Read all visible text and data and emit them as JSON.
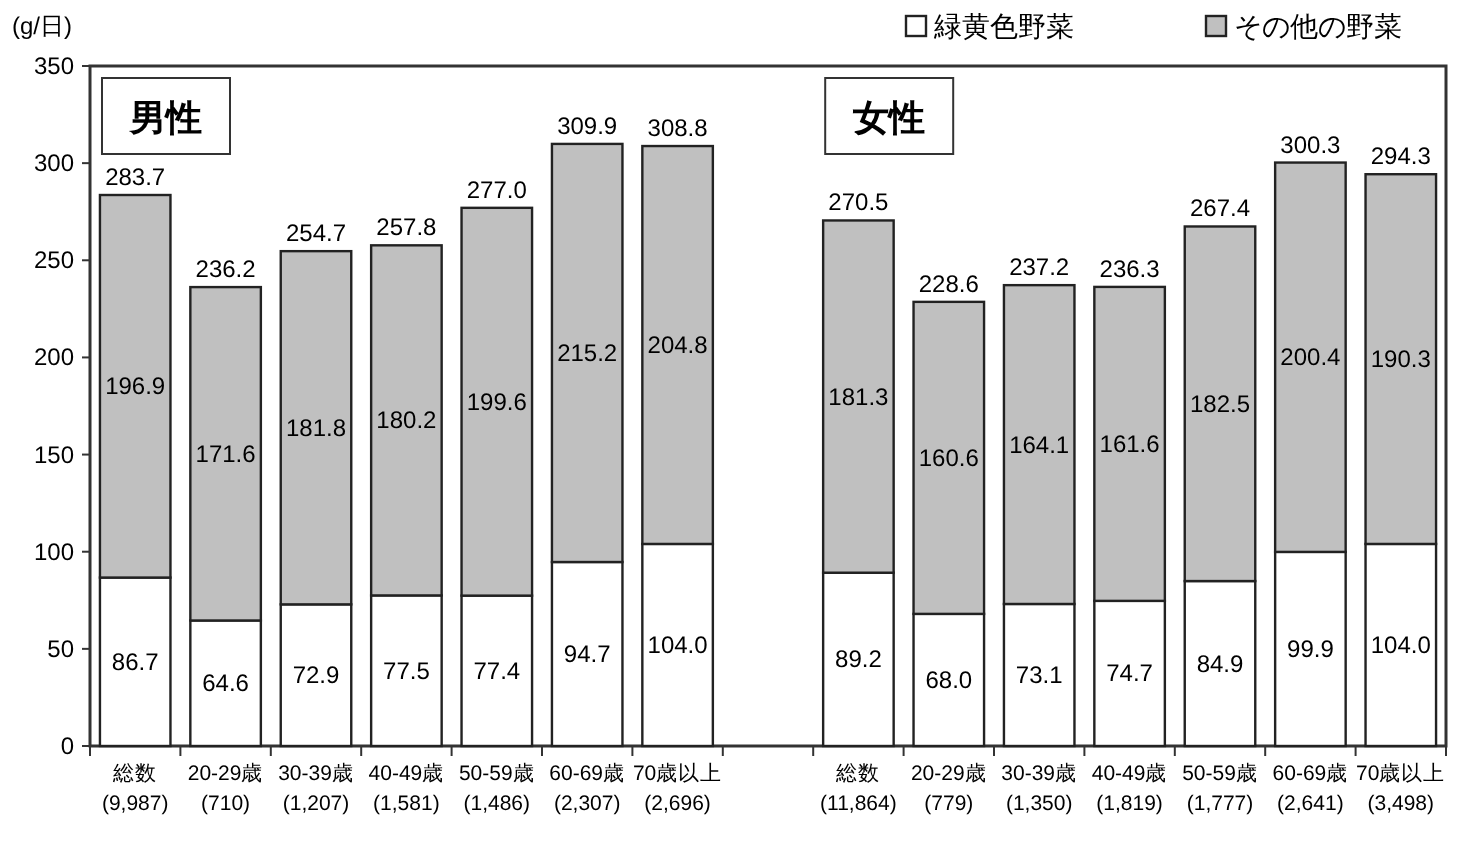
{
  "chart_data": {
    "type": "bar",
    "stacked": true,
    "ylabel": "(g/日)",
    "ylim": [
      0,
      350
    ],
    "yticks": [
      0,
      50,
      100,
      150,
      200,
      250,
      300,
      350
    ],
    "legend": "top right",
    "grid": false,
    "categories": [
      "総数\n(9,987)",
      "20-29歳\n(710)",
      "30-39歳\n(1,207)",
      "40-49歳\n(1,581)",
      "50-59歳\n(1,486)",
      "60-69歳\n(2,307)",
      "70歳以上\n(2,696)",
      null,
      "総数\n(11,864)",
      "20-29歳\n(779)",
      "30-39歳\n(1,350)",
      "40-49歳\n(1,819)",
      "50-59歳\n(1,777)",
      "60-69歳\n(2,641)",
      "70歳以上\n(3,498)"
    ],
    "series": [
      {
        "name": "緑黄色野菜",
        "color": "#ffffff",
        "values": [
          86.7,
          64.6,
          72.9,
          77.5,
          77.4,
          94.7,
          104.0,
          null,
          89.2,
          68.0,
          73.1,
          74.7,
          84.9,
          99.9,
          104.0
        ],
        "value_labels": [
          "86.7",
          "64.6",
          "72.9",
          "77.5",
          "77.4",
          "94.7",
          "104.0",
          null,
          "89.2",
          "68.0",
          "73.1",
          "74.7",
          "84.9",
          "99.9",
          "104.0"
        ]
      },
      {
        "name": "その他の野菜",
        "color": "#c0c0c0",
        "values": [
          196.9,
          171.6,
          181.8,
          180.2,
          199.6,
          215.2,
          204.8,
          null,
          181.3,
          160.6,
          164.1,
          161.6,
          182.5,
          200.4,
          190.3
        ],
        "value_labels": [
          "196.9",
          "171.6",
          "181.8",
          "180.2",
          "199.6",
          "215.2",
          "204.8",
          null,
          "181.3",
          "160.6",
          "164.1",
          "161.6",
          "182.5",
          "200.4",
          "190.3"
        ]
      }
    ],
    "totals": [
      "283.7",
      "236.2",
      "254.7",
      "257.8",
      "277.0",
      "309.9",
      "308.8",
      null,
      "270.5",
      "228.6",
      "237.2",
      "236.3",
      "267.4",
      "300.3",
      "294.3"
    ],
    "annotations": [
      "男性",
      "女性"
    ]
  }
}
